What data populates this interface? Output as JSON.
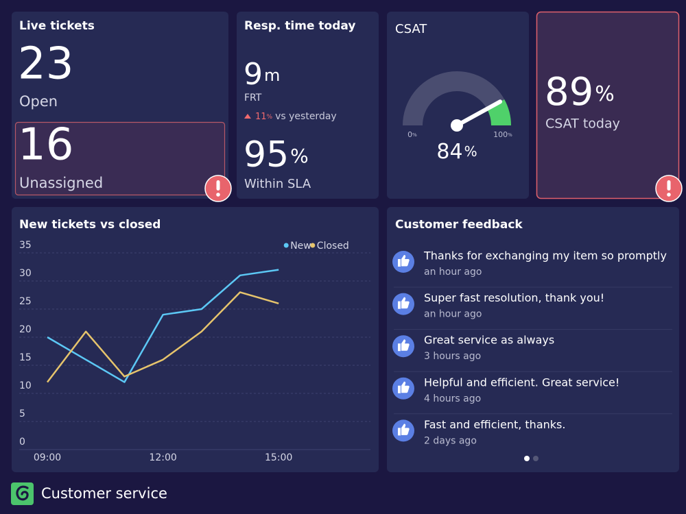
{
  "live_tickets": {
    "title": "Live tickets",
    "open_value": 23,
    "open_label": "Open",
    "unassigned_value": 16,
    "unassigned_label": "Unassigned"
  },
  "response_time": {
    "title": "Resp. time today",
    "frt_value": 9,
    "frt_unit": "m",
    "frt_label": "FRT",
    "change_value": 11,
    "change_unit": "%",
    "change_text": "vs yesterday",
    "sla_value": 95,
    "sla_unit": "%",
    "sla_label": "Within SLA"
  },
  "csat_gauge": {
    "title": "CSAT",
    "min": 0,
    "max": 100,
    "value": 84,
    "unit": "%",
    "track_color": "#4a4d70",
    "fill_color": "#4fd16a"
  },
  "csat_today": {
    "value": 89,
    "unit": "%",
    "label": "CSAT today"
  },
  "chart_data": {
    "type": "line",
    "title": "New tickets vs closed",
    "categories": [
      "09:00",
      null,
      null,
      "12:00",
      null,
      null,
      "15:00"
    ],
    "series": [
      {
        "name": "New",
        "color": "#5cc8f5",
        "values": [
          20,
          16,
          12,
          24,
          25,
          31,
          32
        ]
      },
      {
        "name": "Closed",
        "color": "#e6c46c",
        "values": [
          12,
          21,
          13,
          16,
          21,
          28,
          26
        ]
      }
    ],
    "ylim": [
      0,
      35
    ],
    "yticks": [
      0,
      5,
      10,
      15,
      20,
      25,
      30,
      35
    ],
    "grid": true,
    "legend": "top-right"
  },
  "feedback": {
    "title": "Customer feedback",
    "items": [
      {
        "text": "Thanks for exchanging my item so promptly",
        "time": "an hour ago"
      },
      {
        "text": "Super fast resolution, thank you!",
        "time": "an hour ago"
      },
      {
        "text": "Great service as always",
        "time": "3 hours ago"
      },
      {
        "text": "Helpful and efficient. Great service!",
        "time": "4 hours ago"
      },
      {
        "text": "Fast and efficient, thanks.",
        "time": "2 days ago"
      }
    ]
  },
  "footer": {
    "title": "Customer service"
  }
}
